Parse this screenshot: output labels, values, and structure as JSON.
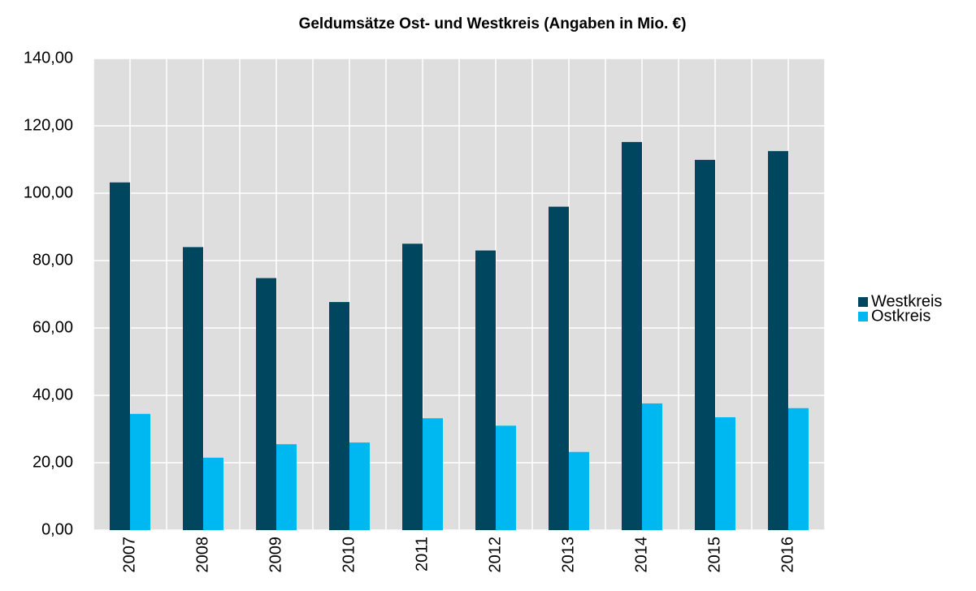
{
  "chart_data": {
    "type": "bar",
    "title": "Geldumsätze Ost- und Westkreis  (Angaben in Mio. €)",
    "categories": [
      "2007",
      "2008",
      "2009",
      "2010",
      "2011",
      "2012",
      "2013",
      "2014",
      "2015",
      "2016"
    ],
    "series": [
      {
        "name": "Westkreis",
        "color": "#00465f",
        "values": [
          103.2,
          84,
          74.8,
          67.7,
          85,
          83,
          96,
          115.2,
          109.9,
          112.5
        ]
      },
      {
        "name": "Ostkreis",
        "color": "#00b8f1",
        "values": [
          34.5,
          21.5,
          25.5,
          26,
          33.2,
          31,
          23.2,
          37.6,
          33.5,
          36.2
        ]
      }
    ],
    "ylim": [
      0,
      140
    ],
    "yticks": [
      {
        "value": 0,
        "label": "0,00"
      },
      {
        "value": 20,
        "label": "20,00"
      },
      {
        "value": 40,
        "label": "40,00"
      },
      {
        "value": 60,
        "label": "60,00"
      },
      {
        "value": 80,
        "label": "80,00"
      },
      {
        "value": 100,
        "label": "100,00"
      },
      {
        "value": 120,
        "label": "120,00"
      },
      {
        "value": 140,
        "label": "140,00"
      }
    ],
    "grid": true,
    "legend": "right"
  }
}
